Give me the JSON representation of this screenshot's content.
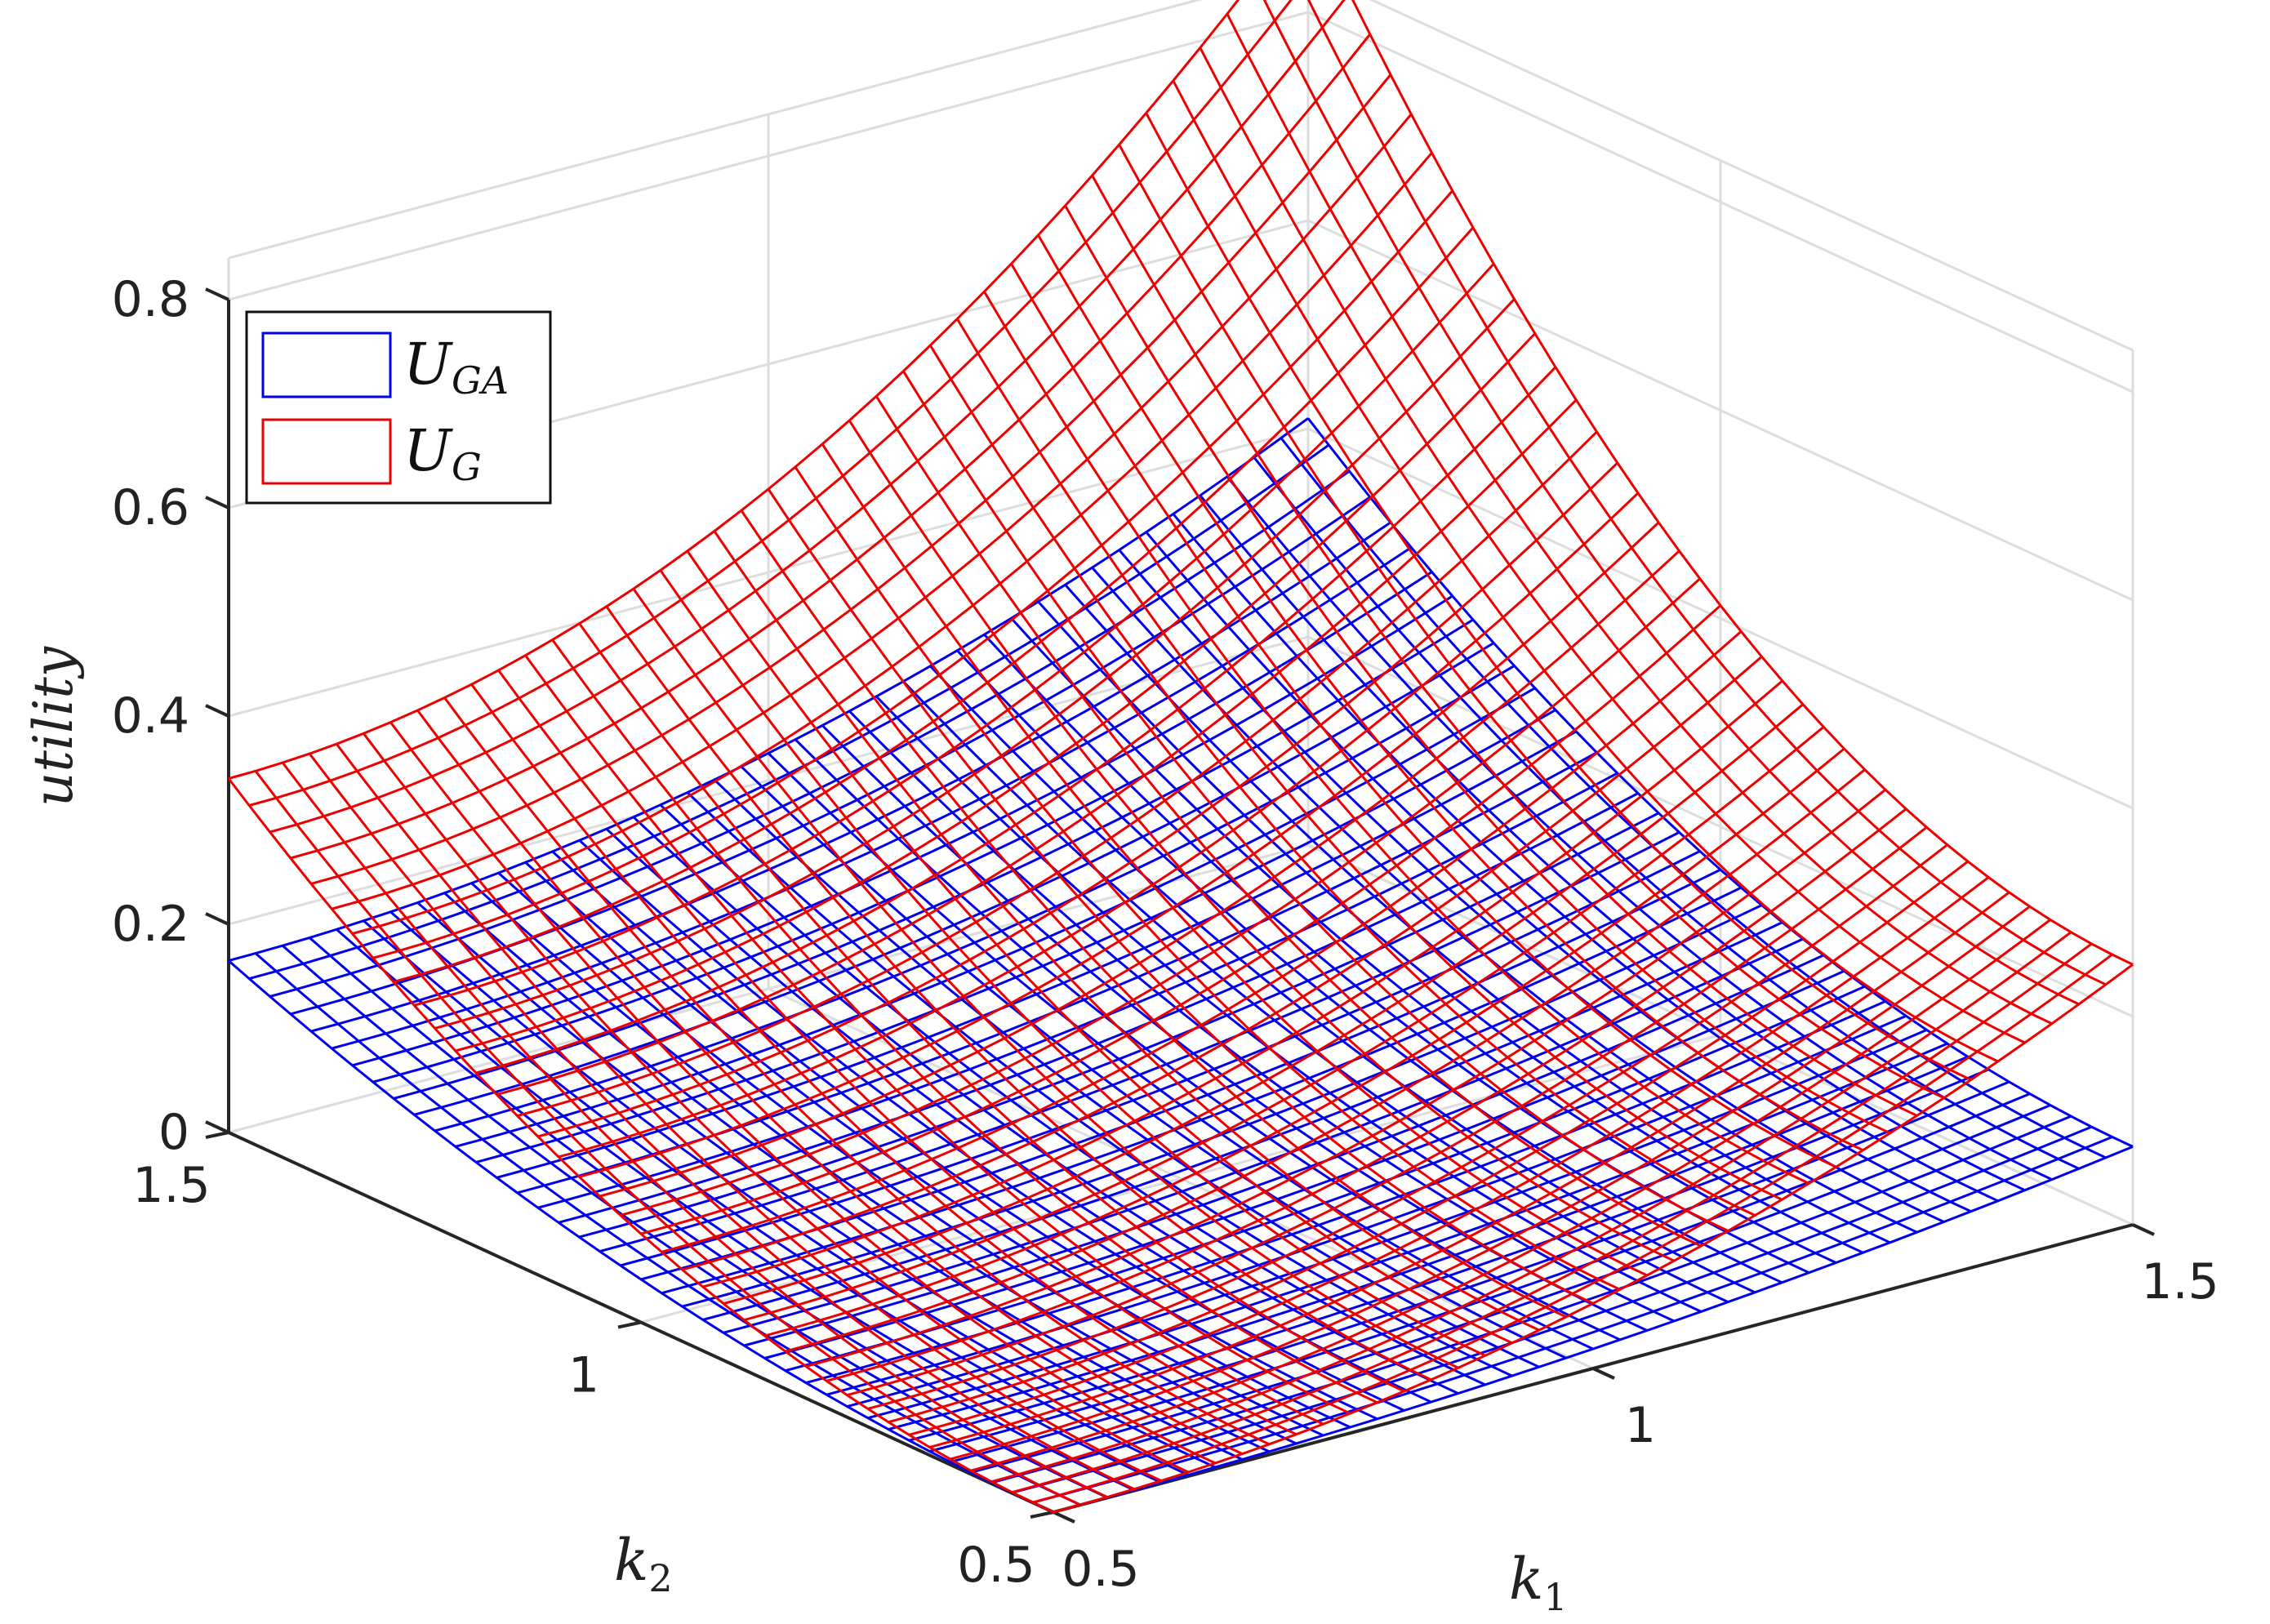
{
  "chart_data": {
    "type": "surface",
    "title": "",
    "xlabel": "k",
    "xlabel_sub": "1",
    "ylabel": "k",
    "ylabel_sub": "2",
    "zlabel": "utility",
    "xlim": [
      0.5,
      1.5
    ],
    "ylim": [
      0.5,
      1.5
    ],
    "zlim": [
      0,
      0.8
    ],
    "x_ticks": [
      "0.5",
      "1",
      "1.5"
    ],
    "y_ticks": [
      "0.5",
      "1",
      "1.5"
    ],
    "z_ticks": [
      "0",
      "0.2",
      "0.4",
      "0.6",
      "0.8"
    ],
    "grid": true,
    "legend_position": "top-left",
    "grid_resolution": 40,
    "series": [
      {
        "name": "U",
        "name_sub": "GA",
        "color": "#0000ee",
        "corner_values": {
          "k1_0.5_k2_0.5": 0.0,
          "k1_1.5_k2_0.5": 0.075,
          "k1_0.5_k2_1.5": 0.165,
          "k1_1.5_k2_1.5": 0.41
        },
        "peak_value": 0.41
      },
      {
        "name": "U",
        "name_sub": "G",
        "color": "#ee0000",
        "corner_values": {
          "k1_0.5_k2_0.5": 0.0,
          "k1_1.5_k2_0.5": 0.25,
          "k1_0.5_k2_1.5": 0.34,
          "k1_1.5_k2_1.5": 0.9
        },
        "peak_value": 0.9
      }
    ]
  }
}
